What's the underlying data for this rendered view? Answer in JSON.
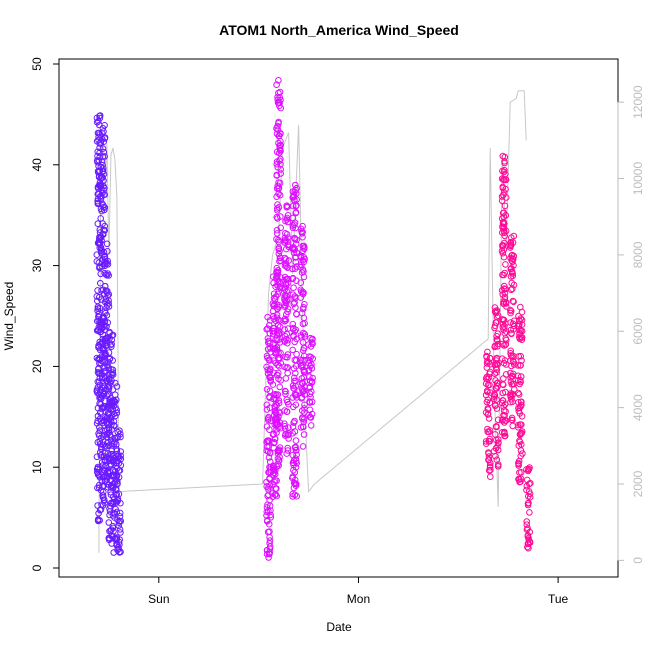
{
  "chart_data": {
    "type": "scatter",
    "title": "ATOM1 North_America Wind_Speed",
    "xlabel": "Date",
    "ylabel": "Wind_Speed",
    "x_ticks": [
      "Sun",
      "Mon",
      "Tue"
    ],
    "x_tick_values": [
      1.0,
      2.0,
      3.0
    ],
    "xlim": [
      0.5,
      3.3
    ],
    "ylim": [
      0,
      50
    ],
    "y_ticks": [
      0,
      10,
      20,
      30,
      40,
      50
    ],
    "y2_ticks": [
      0,
      2000,
      4000,
      6000,
      8000,
      10000,
      12000
    ],
    "y2lim": [
      -200,
      13000
    ],
    "grid": false,
    "colors": {
      "flight1_points": "#6a1bff",
      "flight2_points": "#dd10ff",
      "flight3_points": "#ff0a96",
      "altitude_line": "#c8c8c8",
      "axis": "#000000",
      "right_axis": "#bdbdbd"
    },
    "series": [
      {
        "color_key": "flight1_points",
        "kind": "points",
        "x_range": [
          0.7,
          0.8
        ],
        "clusters": [
          {
            "x": 0.7,
            "y_min": 4.5,
            "y_max": 45.0
          },
          {
            "x": 0.72,
            "y_min": 6.0,
            "y_max": 44.0
          },
          {
            "x": 0.74,
            "y_min": 8.0,
            "y_max": 33.0
          },
          {
            "x": 0.76,
            "y_min": 2.0,
            "y_max": 24.0
          },
          {
            "x": 0.78,
            "y_min": 1.5,
            "y_max": 19.0
          },
          {
            "x": 0.8,
            "y_min": 1.5,
            "y_max": 14.0
          }
        ]
      },
      {
        "color_key": "flight2_points",
        "kind": "points",
        "x_range": [
          1.55,
          1.8
        ],
        "clusters": [
          {
            "x": 1.55,
            "y_min": 1.0,
            "y_max": 25.0
          },
          {
            "x": 1.58,
            "y_min": 7.0,
            "y_max": 29.0
          },
          {
            "x": 1.6,
            "y_min": 10.0,
            "y_max": 48.5
          },
          {
            "x": 1.64,
            "y_min": 11.0,
            "y_max": 36.0
          },
          {
            "x": 1.68,
            "y_min": 7.0,
            "y_max": 38.0
          },
          {
            "x": 1.72,
            "y_min": 12.0,
            "y_max": 34.0
          },
          {
            "x": 1.76,
            "y_min": 14.0,
            "y_max": 23.0
          }
        ]
      },
      {
        "color_key": "flight3_points",
        "kind": "points",
        "x_range": [
          2.65,
          2.85
        ],
        "clusters": [
          {
            "x": 2.65,
            "y_min": 9.0,
            "y_max": 22.0
          },
          {
            "x": 2.69,
            "y_min": 10.0,
            "y_max": 26.0
          },
          {
            "x": 2.73,
            "y_min": 13.0,
            "y_max": 41.0
          },
          {
            "x": 2.77,
            "y_min": 14.0,
            "y_max": 33.0
          },
          {
            "x": 2.81,
            "y_min": 8.0,
            "y_max": 26.0
          },
          {
            "x": 2.85,
            "y_min": 1.5,
            "y_max": 10.0
          }
        ]
      },
      {
        "color_key": "altitude_line",
        "kind": "line",
        "axis": "right",
        "points": [
          [
            0.7,
            200
          ],
          [
            0.71,
            11000
          ],
          [
            0.72,
            11200
          ],
          [
            0.73,
            9800
          ],
          [
            0.74,
            10900
          ],
          [
            0.75,
            8000
          ],
          [
            0.76,
            10600
          ],
          [
            0.77,
            10800
          ],
          [
            0.78,
            10500
          ],
          [
            0.79,
            9500
          ],
          [
            0.8,
            1800
          ],
          [
            1.52,
            2000
          ],
          [
            1.55,
            7000
          ],
          [
            1.57,
            8000
          ],
          [
            1.6,
            8500
          ],
          [
            1.62,
            10800
          ],
          [
            1.65,
            11200
          ],
          [
            1.67,
            7500
          ],
          [
            1.7,
            11400
          ],
          [
            1.73,
            4000
          ],
          [
            1.75,
            1800
          ],
          [
            1.78,
            2000
          ],
          [
            2.65,
            5800
          ],
          [
            2.66,
            10800
          ],
          [
            2.68,
            4500
          ],
          [
            2.7,
            1400
          ],
          [
            2.72,
            10600
          ],
          [
            2.74,
            8200
          ],
          [
            2.76,
            12000
          ],
          [
            2.79,
            12100
          ],
          [
            2.8,
            12300
          ],
          [
            2.83,
            12300
          ],
          [
            2.84,
            11000
          ]
        ]
      }
    ]
  }
}
